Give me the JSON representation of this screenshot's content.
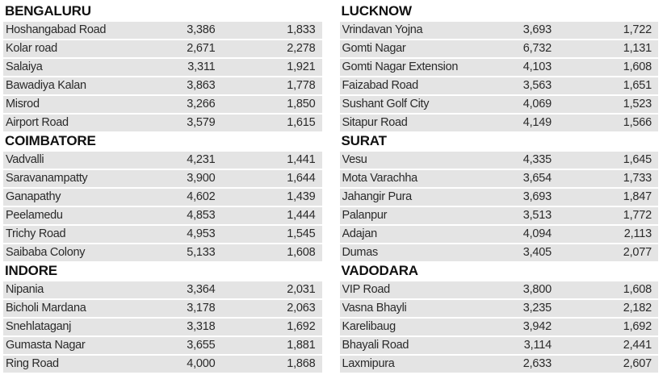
{
  "colors": {
    "page_background": "#ffffff",
    "row_background": "#e4e4e4",
    "text": "#2a2a2a",
    "heading": "#111111"
  },
  "chart_data": {
    "type": "table",
    "title": "",
    "layout": {
      "columns_of_sections": 2,
      "grid": "striped-rows",
      "value_columns_per_row": 2
    },
    "columns": [
      {
        "sections": [
          {
            "city": "BENGALURU",
            "rows": [
              [
                "Hoshangabad Road",
                "3,386",
                "1,833"
              ],
              [
                "Kolar road",
                "2,671",
                "2,278"
              ],
              [
                "Salaiya",
                "3,311",
                "1,921"
              ],
              [
                "Bawadiya Kalan",
                "3,863",
                "1,778"
              ],
              [
                "Misrod",
                "3,266",
                "1,850"
              ],
              [
                "Airport Road",
                "3,579",
                "1,615"
              ]
            ]
          },
          {
            "city": "COIMBATORE",
            "rows": [
              [
                "Vadvalli",
                "4,231",
                "1,441"
              ],
              [
                "Saravanampatty",
                "3,900",
                "1,644"
              ],
              [
                "Ganapathy",
                "4,602",
                "1,439"
              ],
              [
                "Peelamedu",
                "4,853",
                "1,444"
              ],
              [
                "Trichy Road",
                "4,953",
                "1,545"
              ],
              [
                "Saibaba Colony",
                "5,133",
                "1,608"
              ]
            ]
          },
          {
            "city": "INDORE",
            "rows": [
              [
                "Nipania",
                "3,364",
                "2,031"
              ],
              [
                "Bicholi Mardana",
                "3,178",
                "2,063"
              ],
              [
                "Snehlataganj",
                "3,318",
                "1,692"
              ],
              [
                "Gumasta Nagar",
                "3,655",
                "1,881"
              ],
              [
                "Ring Road",
                "4,000",
                "1,868"
              ]
            ]
          }
        ]
      },
      {
        "sections": [
          {
            "city": "LUCKNOW",
            "rows": [
              [
                "Vrindavan Yojna",
                "3,693",
                "1,722"
              ],
              [
                "Gomti Nagar",
                "6,732",
                "1,131"
              ],
              [
                "Gomti Nagar Extension",
                "4,103",
                "1,608"
              ],
              [
                "Faizabad Road",
                "3,563",
                "1,651"
              ],
              [
                "Sushant Golf City",
                "4,069",
                "1,523"
              ],
              [
                "Sitapur Road",
                "4,149",
                "1,566"
              ]
            ]
          },
          {
            "city": "SURAT",
            "rows": [
              [
                "Vesu",
                "4,335",
                "1,645"
              ],
              [
                "Mota Varachha",
                "3,654",
                "1,733"
              ],
              [
                "Jahangir Pura",
                "3,693",
                "1,847"
              ],
              [
                "Palanpur",
                "3,513",
                "1,772"
              ],
              [
                "Adajan",
                "4,094",
                "2,113"
              ],
              [
                "Dumas",
                "3,405",
                "2,077"
              ]
            ]
          },
          {
            "city": "VADODARA",
            "rows": [
              [
                "VIP Road",
                "3,800",
                "1,608"
              ],
              [
                "Vasna Bhayli",
                "3,235",
                "2,182"
              ],
              [
                "Karelibaug",
                "3,942",
                "1,692"
              ],
              [
                "Bhayali Road",
                "3,114",
                "2,441"
              ],
              [
                "Laxmipura",
                "2,633",
                "2,607"
              ]
            ]
          }
        ]
      }
    ]
  }
}
